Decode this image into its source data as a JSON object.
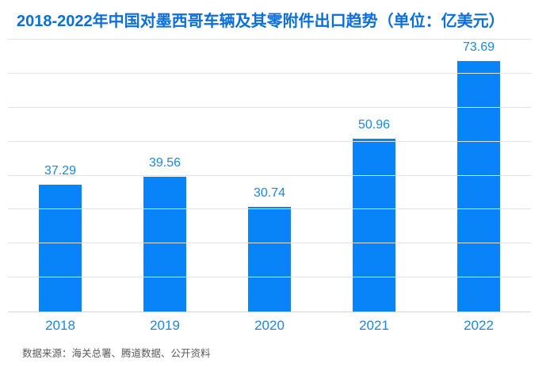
{
  "chart": {
    "title": "2018-2022年中国对墨西哥车辆及其零附件出口趋势（单位：亿美元）",
    "title_color": "#0a6edb"
  },
  "chart_data": {
    "type": "bar",
    "title": "2018-2022年中国对墨西哥车辆及其零附件出口趋势（单位：亿美元）",
    "categories": [
      "2018",
      "2019",
      "2020",
      "2021",
      "2022"
    ],
    "values": [
      37.29,
      39.56,
      30.74,
      50.96,
      73.69
    ],
    "value_labels": [
      "37.29",
      "39.56",
      "30.74",
      "50.96",
      "73.69"
    ],
    "xlabel": "",
    "ylabel": "",
    "ylim": [
      0,
      80
    ],
    "gridline_step": 10,
    "grid": true,
    "y_tick_labels_visible": false,
    "legend": "none",
    "bar_color": "#0884f8",
    "value_label_color": "#1b86ea",
    "category_label_color": "#1b86ea",
    "gridline_color": "#e2e2e2",
    "axis_line_color": "#d6d6d6"
  },
  "footer": {
    "source": "数据来源：海关总署、腾道数据、公开资料"
  }
}
